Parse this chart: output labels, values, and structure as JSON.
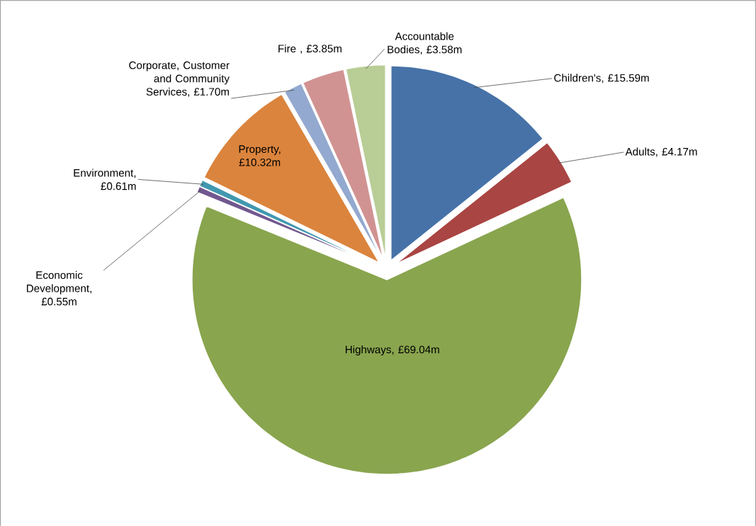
{
  "chart_data": {
    "type": "pie",
    "categories": [
      "Children's, £15.59m",
      "Adults, £4.17m",
      "Highways, £69.04m",
      "Economic Development, £0.55m",
      "Environment, £0.61m",
      "Property, £10.32m",
      "Corporate, Customer and Community Services, £1.70m",
      "Fire , £3.85m",
      "Accountable Bodies, £3.58m"
    ],
    "values": [
      15.59,
      4.17,
      69.04,
      0.55,
      0.61,
      10.32,
      1.7,
      3.85,
      3.58
    ],
    "colors": [
      "#4672a8",
      "#a94542",
      "#89a54e",
      "#71588f",
      "#4198af",
      "#db843d",
      "#93a9cf",
      "#d19392",
      "#b9cd96"
    ]
  }
}
